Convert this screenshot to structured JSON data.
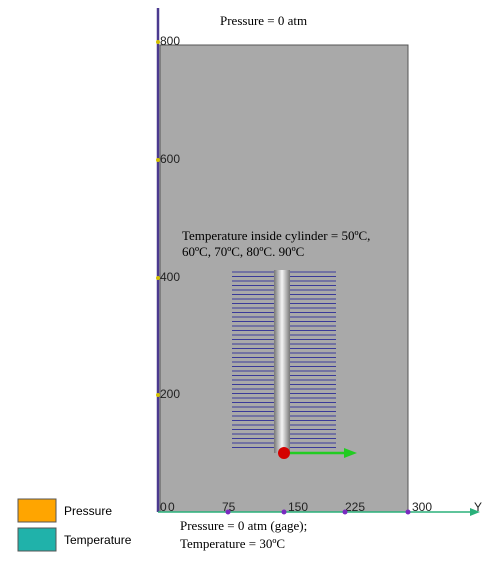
{
  "scene": {
    "top_label": "Pressure = 0 atm",
    "cylinder_label": [
      "Temperature inside cylinder = 50ºC,",
      "60ºC, 70ºC, 80ºC. 90ºC"
    ],
    "bottom_label": [
      "Pressure = 0 atm (gage);",
      "Temperature = 30ºC"
    ]
  },
  "axes": {
    "vertical_labels": [
      "800",
      "600",
      "400",
      "200",
      "0"
    ],
    "horizontal_labels": [
      "0",
      "75",
      "150",
      "225",
      "300"
    ],
    "horizontal_axis_name": "Y"
  },
  "legend": {
    "items": [
      {
        "label": "Pressure",
        "color": "#ffa500"
      },
      {
        "label": "Temperature",
        "color": "#20b2aa"
      }
    ]
  }
}
